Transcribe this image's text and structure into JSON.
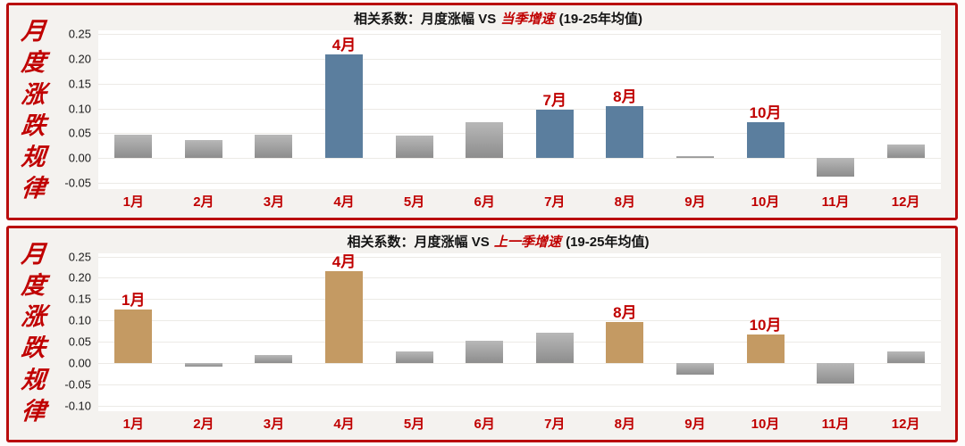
{
  "sidebar": {
    "text": "月度涨跌规律",
    "color": "#c00000"
  },
  "colors": {
    "red_text": "#c00000",
    "panel_border": "#b90c0c",
    "panel_bg": "#f4f2ef",
    "plot_bg": "#ffffff",
    "gridline": "#eceae6",
    "bar_grey_top": "#b8b8b8",
    "bar_grey_bottom": "#8d8d8d",
    "bar_blue": "#5b7e9e",
    "bar_tan": "#c49a63"
  },
  "chart_data": [
    {
      "type": "bar",
      "title_prefix": "相关系数：月度涨幅 VS ",
      "title_highlight": "当季增速",
      "title_suffix": " (19-25年均值)",
      "categories": [
        "1月",
        "2月",
        "3月",
        "4月",
        "5月",
        "6月",
        "7月",
        "8月",
        "9月",
        "10月",
        "11月",
        "12月"
      ],
      "values": [
        0.047,
        0.036,
        0.047,
        0.208,
        0.046,
        0.073,
        0.097,
        0.105,
        0.003,
        0.073,
        -0.037,
        0.028
      ],
      "highlighted": [
        "4月",
        "7月",
        "8月",
        "10月"
      ],
      "highlight_class": "hl-blue",
      "highlight_color": "#5b7e9e",
      "ylim": [
        -0.05,
        0.25
      ],
      "yticks": [
        "0.25",
        "0.20",
        "0.15",
        "0.10",
        "0.05",
        "0.00",
        "-0.05"
      ],
      "grid": true,
      "legend": "none",
      "xlabel": "",
      "ylabel": ""
    },
    {
      "type": "bar",
      "title_prefix": "相关系数：月度涨幅 VS ",
      "title_highlight": "上一季增速",
      "title_suffix": " (19-25年均值)",
      "categories": [
        "1月",
        "2月",
        "3月",
        "4月",
        "5月",
        "6月",
        "7月",
        "8月",
        "9月",
        "10月",
        "11月",
        "12月"
      ],
      "values": [
        0.125,
        -0.008,
        0.018,
        0.215,
        0.026,
        0.052,
        0.07,
        0.096,
        -0.028,
        0.066,
        -0.048,
        0.026
      ],
      "highlighted": [
        "1月",
        "4月",
        "8月",
        "10月"
      ],
      "highlight_class": "hl-tan",
      "highlight_color": "#c49a63",
      "ylim": [
        -0.1,
        0.25
      ],
      "yticks": [
        "0.25",
        "0.20",
        "0.15",
        "0.10",
        "0.05",
        "0.00",
        "-0.05",
        "-0.10"
      ],
      "grid": true,
      "legend": "none",
      "xlabel": "",
      "ylabel": ""
    }
  ]
}
